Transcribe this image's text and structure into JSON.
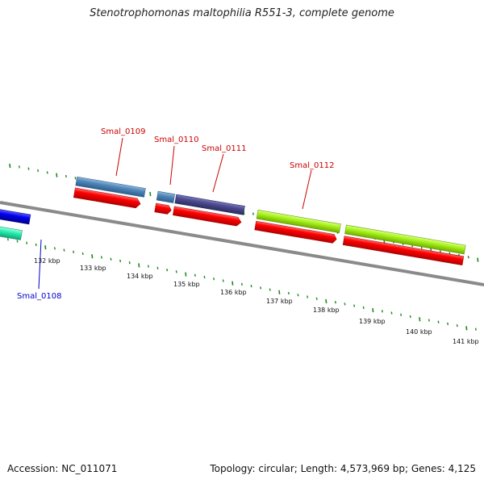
{
  "title": "Stenotrophomonas maltophilia R551-3, complete genome",
  "footer": {
    "accession": "Accession: NC_011071",
    "summary": "Topology: circular; Length: 4,573,969 bp; Genes: 4,125"
  },
  "scale_labels": [
    "132 kbp",
    "133 kbp",
    "134 kbp",
    "135 kbp",
    "136 kbp",
    "137 kbp",
    "138 kbp",
    "139 kbp",
    "140 kbp",
    "141 kbp"
  ],
  "gene_labels": {
    "top": [
      "Smal_0109",
      "Smal_0110",
      "Smal_0111",
      "Smal_0112"
    ],
    "bottom": [
      "Smal_0108"
    ]
  },
  "colors": {
    "backbone": "#8a8a8a",
    "tick": "#1a8a1a",
    "label_red": "#cc0000",
    "label_blue": "#0000cc",
    "cds_red": "#ff0000",
    "steel_blue": "#4f86b8",
    "slate_purple": "#4b4a8e",
    "lime": "#a6f21a",
    "aqua_green": "#28f0b0",
    "blue": "#0000ee"
  }
}
